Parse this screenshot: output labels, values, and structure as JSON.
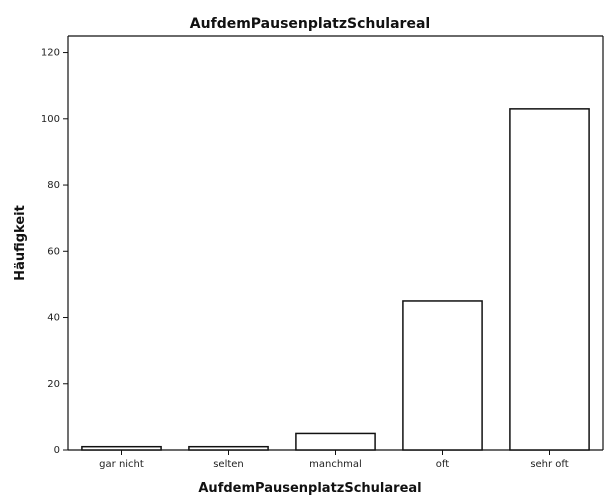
{
  "chart_data": {
    "type": "bar",
    "title": "AufdemPausenplatzSchulareal",
    "xlabel": "AufdemPausenplatzSchulareal",
    "ylabel": "Häufigkeit",
    "categories": [
      "gar nicht",
      "selten",
      "manchmal",
      "oft",
      "sehr oft"
    ],
    "values": [
      1,
      1,
      5,
      45,
      103
    ],
    "ylim": [
      0,
      125
    ],
    "yticks": [
      0,
      20,
      40,
      60,
      80,
      100,
      120
    ],
    "grid": false,
    "colors": {
      "bar_fill": "#ffffff",
      "bar_stroke": "#111111",
      "axis": "#111111"
    }
  }
}
